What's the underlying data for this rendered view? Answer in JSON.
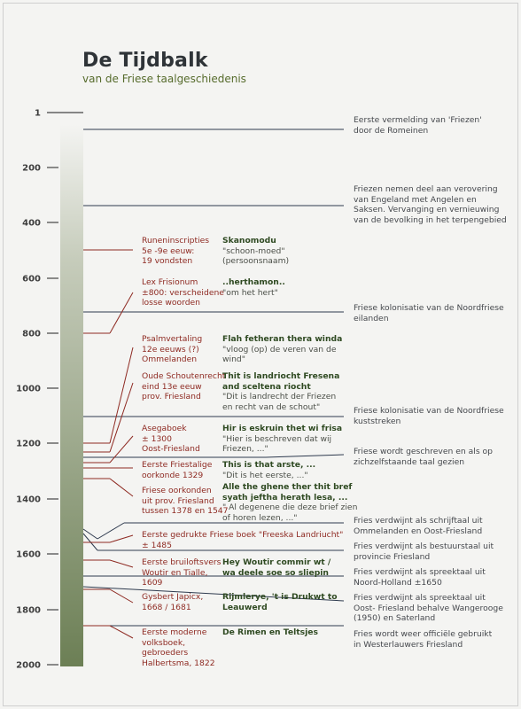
{
  "title": "De Tijdbalk",
  "subtitle": "van de Friese taalgeschiedenis",
  "axis": {
    "ticks": [
      "1",
      "200",
      "400",
      "600",
      "800",
      "1000",
      "1200",
      "1400",
      "1600",
      "1800",
      "2000"
    ]
  },
  "colors": {
    "bar_top": "#ffffff",
    "bar_bottom": "#6c7f55",
    "right_text": "#45484d",
    "red_text": "#8e2a22",
    "green_bold": "#2f4a22",
    "line_dark": "#2e3a4e",
    "line_red": "#8e2a22"
  },
  "right_events": [
    {
      "l1": "Eerste vermelding van 'Friezen'",
      "l2": "door de Romeinen",
      "l3": ""
    },
    {
      "l1": "Friezen nemen deel aan verovering",
      "l2": "van Engeland met Angelen en",
      "l3": "Saksen. Vervanging en vernieuwing",
      "l4": "van de bevolking in het terpengebied"
    },
    {
      "l1": "Friese kolonisatie van de Noordfriese",
      "l2": "eilanden"
    },
    {
      "l1": "Friese kolonisatie van de Noordfriese",
      "l2": "kuststreken"
    },
    {
      "l1": "Friese wordt geschreven en als op",
      "l2": "zichzelfstaande taal gezien"
    },
    {
      "l1": "Fries verdwijnt als schrijftaal uit",
      "l2": "Ommelanden en Oost-Friesland"
    },
    {
      "l1": "Fries verdwijnt als bestuurstaal uit",
      "l2": "provincie Friesland"
    },
    {
      "l1": "Fries verdwijnt als spreektaal uit",
      "l2": "Noord-Holland ±1650"
    },
    {
      "l1": "Fries verdwijnt als spreektaal uit",
      "l2": "Oost- Friesland behalve Wangerooge",
      "l3": "(1950) en Saterland"
    },
    {
      "l1": "Fries wordt weer officiële gebruikt",
      "l2": "in Westerlauwers Friesland"
    }
  ],
  "red_events": [
    {
      "l1": "Runeninscripties",
      "l2": "5e -9e eeuw:",
      "l3": "19 vondsten"
    },
    {
      "l1": "Lex Frisionum",
      "l2": "±800: verscheidene",
      "l3": "losse woorden"
    },
    {
      "l1": "Psalmvertaling",
      "l2": "12e eeuws (?)",
      "l3": "Ommelanden"
    },
    {
      "l1": "Oude Schoutenrecht",
      "l2": "eind 13e eeuw",
      "l3": "prov. Friesland"
    },
    {
      "l1": "Asegaboek",
      "l2": "± 1300",
      "l3": "Oost-Friesland"
    },
    {
      "l1": "Eerste Friestalige",
      "l2": "oorkonde 1329"
    },
    {
      "l1": "Friese oorkonden",
      "l2": "uit prov. Friesland",
      "l3": "tussen 1378 en 1547"
    },
    {
      "l1": "Eerste gedrukte Friese boek \"Freeska Landriucht\"",
      "l2": "± 1485"
    },
    {
      "l1": "Eerste bruiloftsvers",
      "l2": "Woutir en Tialle,",
      "l3": "1609"
    },
    {
      "l1": "Gysbert Japicx,",
      "l2": "1668 / 1681"
    },
    {
      "l1": "Eerste moderne",
      "l2": "volksboek,",
      "l3": "gebroeders",
      "l4": "Halbertsma, 1822"
    }
  ],
  "quotes": [
    {
      "bold": "Skanomodu",
      "l1": "\"schoon-moed\"",
      "l2": "(persoonsnaam)"
    },
    {
      "bold": "..herthamon..",
      "l1": "\"om het hert\""
    },
    {
      "bold": "Flah fetheran thera winda",
      "l1": "\"vloog (op) de veren van de",
      "l2": "wind\""
    },
    {
      "bold": "Thit is landriocht Fresena",
      "bold2": "and sceltena riocht",
      "l1": "\"Dit is landrecht der Friezen",
      "l2": "en recht van de schout\""
    },
    {
      "bold": "Hir is eskruin thet wi frisa",
      "l1": "\"Hier is beschreven dat wij",
      "l2": "Friezen, ...\""
    },
    {
      "bold": "This is that arste, ...",
      "l1": "\"Dit is het eerste, ...\""
    },
    {
      "bold": "Alle the ghene ther thit bref",
      "bold2": "syath jeftha herath lesa, ...",
      "l1": "\" Al degenene die deze brief zien",
      "l2": "of horen lezen, ...\""
    },
    {
      "bold": "Hey Woutir commir wt /",
      "bold2": "wa deele soe so sliepin"
    },
    {
      "bold": "Rijmlerye, 't is Drukwt to",
      "bold2": "Leauwerd"
    },
    {
      "bold": "De Rimen en Teltsjes"
    }
  ]
}
